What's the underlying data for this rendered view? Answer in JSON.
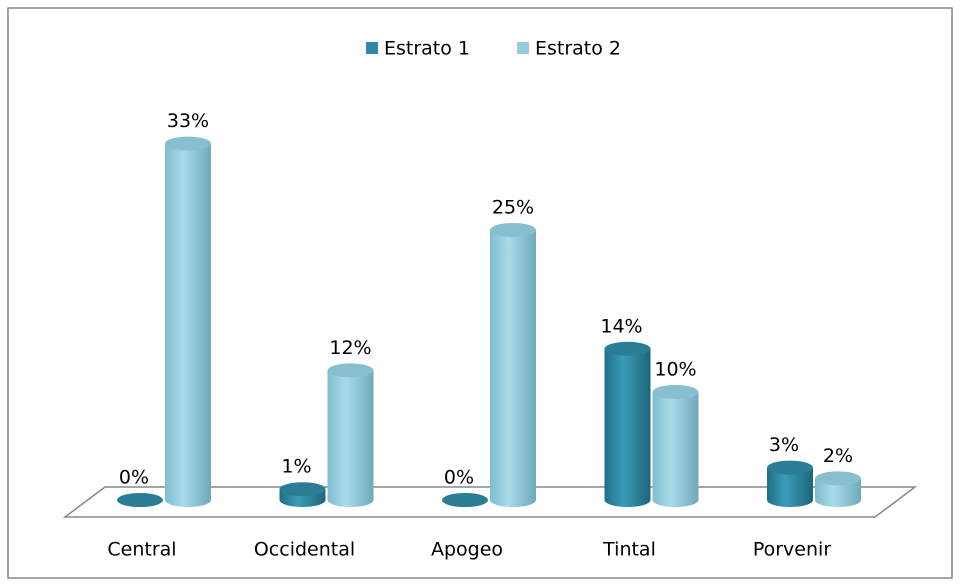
{
  "chart_data": {
    "type": "bar3d-cylinder",
    "categories": [
      "Central",
      "Occidental",
      "Apogeo",
      "Tintal",
      "Porvenir"
    ],
    "series": [
      {
        "name": "Estrato 1",
        "color": "#2e8ba6",
        "values": [
          0,
          1,
          0,
          14,
          3
        ],
        "value_labels": [
          "0%",
          "1%",
          "0%",
          "14%",
          "3%"
        ]
      },
      {
        "name": "Estrato 2",
        "color": "#93cddd",
        "values": [
          33,
          12,
          25,
          10,
          2
        ],
        "value_labels": [
          "33%",
          "12%",
          "25%",
          "10%",
          "2%"
        ]
      }
    ],
    "legend": "top"
  }
}
